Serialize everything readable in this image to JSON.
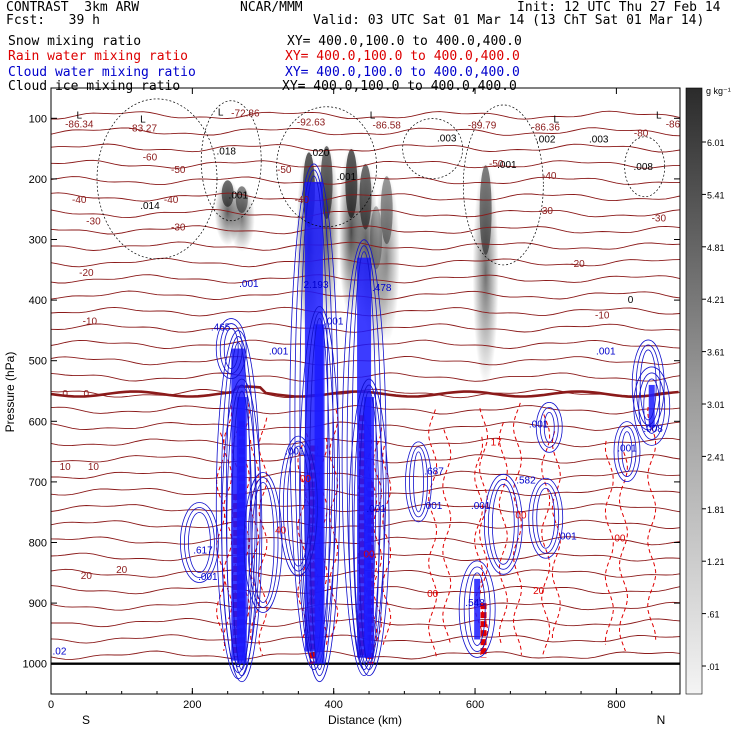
{
  "header": {
    "left_line1": "CONTRAST  3km ARW",
    "left_line2": "Fcst:   39 h",
    "center_line1": "NCAR/MMM",
    "right_line1": "Init: 12 UTC Thu 27 Feb 14",
    "right_line2": "Valid: 03 UTC Sat 01 Mar 14 (13 ChT Sat 01 Mar 14)"
  },
  "fields": [
    {
      "label": "Snow mixing ratio",
      "xy": "XY= 400.0,100.0 to 400.0,400.0",
      "color": "#000000"
    },
    {
      "label": "Rain water mixing ratio",
      "xy": "XY= 400.0,100.0 to 400.0,400.0",
      "color": "#dd0000"
    },
    {
      "label": "Cloud water mixing ratio",
      "xy": "XY= 400.0,100.0 to 400.0,400.0",
      "color": "#0000cc"
    },
    {
      "label": "Cloud ice mixing ratio",
      "xy": "XY= 400.0,100.0 to 400.0,400.0",
      "color": "#000000"
    }
  ],
  "chart_data": {
    "type": "heatmap",
    "xlabel": "Distance (km)",
    "ylabel": "Pressure (hPa)",
    "xlim": [
      0,
      890
    ],
    "ylim": [
      1050,
      50
    ],
    "x_ticks": [
      0,
      200,
      400,
      600,
      800
    ],
    "y_ticks": [
      100,
      200,
      300,
      400,
      500,
      600,
      700,
      800,
      900,
      1000
    ],
    "x_end_labels": {
      "left": "S",
      "right": "N"
    },
    "colorbar": {
      "unit": "g kg⁻¹",
      "levels": [
        "6.01",
        "5.41",
        "4.81",
        "4.21",
        "3.61",
        "3.01",
        "2.41",
        "1.81",
        "1.21",
        ".61",
        ".01"
      ]
    },
    "temperature_contours": {
      "color": "#8b1a1a",
      "labels": [
        {
          "text": "-86.34",
          "x": 40,
          "p": 115
        },
        {
          "text": "-83.27",
          "x": 130,
          "p": 122
        },
        {
          "text": "-72.86",
          "x": 275,
          "p": 97
        },
        {
          "text": "-92.63",
          "x": 368,
          "p": 112
        },
        {
          "text": "-86.58",
          "x": 475,
          "p": 117
        },
        {
          "text": "-89.79",
          "x": 610,
          "p": 117
        },
        {
          "text": "-86.36",
          "x": 700,
          "p": 120
        },
        {
          "text": "-86",
          "x": 880,
          "p": 115
        },
        {
          "text": "-80",
          "x": 835,
          "p": 130
        },
        {
          "text": "-60",
          "x": 140,
          "p": 170
        },
        {
          "text": "-50",
          "x": 180,
          "p": 190
        },
        {
          "text": "-50",
          "x": 330,
          "p": 190
        },
        {
          "text": "-40",
          "x": 40,
          "p": 240
        },
        {
          "text": "-40",
          "x": 170,
          "p": 240
        },
        {
          "text": "-40",
          "x": 355,
          "p": 240
        },
        {
          "text": "-50",
          "x": 630,
          "p": 180
        },
        {
          "text": "-40",
          "x": 705,
          "p": 200
        },
        {
          "text": "-30",
          "x": 60,
          "p": 275
        },
        {
          "text": "-30",
          "x": 180,
          "p": 285
        },
        {
          "text": "-30",
          "x": 700,
          "p": 258
        },
        {
          "text": "-30",
          "x": 860,
          "p": 270
        },
        {
          "text": "-20",
          "x": 50,
          "p": 360
        },
        {
          "text": "-20",
          "x": 745,
          "p": 345
        },
        {
          "text": "-10",
          "x": 55,
          "p": 440
        },
        {
          "text": "-10",
          "x": 780,
          "p": 430
        },
        {
          "text": "0",
          "x": 20,
          "p": 560
        },
        {
          "text": "0",
          "x": 50,
          "p": 560
        },
        {
          "text": "10",
          "x": 20,
          "p": 680
        },
        {
          "text": "10",
          "x": 60,
          "p": 680
        },
        {
          "text": "20",
          "x": 50,
          "p": 860
        },
        {
          "text": "20",
          "x": 100,
          "p": 850
        }
      ]
    },
    "maxima_labels": [
      {
        "text": "L",
        "x": 40,
        "p": 100
      },
      {
        "text": "L",
        "x": 130,
        "p": 107
      },
      {
        "text": "L",
        "x": 240,
        "p": 95
      },
      {
        "text": "L",
        "x": 455,
        "p": 100
      },
      {
        "text": "L",
        "x": 715,
        "p": 107
      },
      {
        "text": "L",
        "x": 860,
        "p": 100
      },
      {
        "text": ".018",
        "x": 248,
        "p": 160
      },
      {
        "text": ".014",
        "x": 140,
        "p": 250
      },
      {
        "text": ".001",
        "x": 265,
        "p": 232
      },
      {
        "text": ".020",
        "x": 380,
        "p": 162
      },
      {
        "text": ".003",
        "x": 560,
        "p": 138
      },
      {
        "text": ".002",
        "x": 700,
        "p": 140
      },
      {
        "text": ".003",
        "x": 775,
        "p": 140
      },
      {
        "text": ".001",
        "x": 645,
        "p": 182
      },
      {
        "text": ".008",
        "x": 838,
        "p": 185
      },
      {
        "text": ".001",
        "x": 418,
        "p": 202
      },
      {
        "text": "0",
        "x": 820,
        "p": 405
      }
    ],
    "rain_labels": [
      {
        "text": "17",
        "x": 630,
        "p": 640
      },
      {
        "text": "00",
        "x": 665,
        "p": 760
      },
      {
        "text": "00",
        "x": 805,
        "p": 798
      },
      {
        "text": "00",
        "x": 540,
        "p": 890
      },
      {
        "text": "20",
        "x": 690,
        "p": 885
      },
      {
        "text": "00",
        "x": 360,
        "p": 700
      },
      {
        "text": "00",
        "x": 450,
        "p": 825
      },
      {
        "text": "40",
        "x": 325,
        "p": 785
      }
    ],
    "cloud_water_labels": [
      {
        "text": ".465",
        "x": 240,
        "p": 450
      },
      {
        "text": ".001",
        "x": 280,
        "p": 378
      },
      {
        "text": "2.193",
        "x": 375,
        "p": 380
      },
      {
        "text": ".478",
        "x": 468,
        "p": 385
      },
      {
        "text": ".001",
        "x": 400,
        "p": 440
      },
      {
        "text": ".001",
        "x": 322,
        "p": 490
      },
      {
        "text": ".001",
        "x": 785,
        "p": 490
      },
      {
        "text": ".001",
        "x": 690,
        "p": 610
      },
      {
        "text": ".001",
        "x": 815,
        "p": 650
      },
      {
        "text": ".008",
        "x": 852,
        "p": 618
      },
      {
        "text": ".001",
        "x": 345,
        "p": 655
      },
      {
        "text": ".687",
        "x": 542,
        "p": 688
      },
      {
        "text": ".001",
        "x": 540,
        "p": 745
      },
      {
        "text": ".001",
        "x": 608,
        "p": 745
      },
      {
        "text": ".582",
        "x": 672,
        "p": 703
      },
      {
        "text": ".001",
        "x": 730,
        "p": 795
      },
      {
        "text": ".617",
        "x": 215,
        "p": 818
      },
      {
        "text": ".001",
        "x": 222,
        "p": 862
      },
      {
        "text": ".548",
        "x": 600,
        "p": 905
      },
      {
        "text": ".02",
        "x": 12,
        "p": 985
      },
      {
        "text": ".001",
        "x": 460,
        "p": 750
      }
    ],
    "snow_columns": [
      {
        "x": 250,
        "p_top": 200,
        "p_bot": 310,
        "intensity": 0.85
      },
      {
        "x": 270,
        "p_top": 210,
        "p_bot": 320,
        "intensity": 0.7
      },
      {
        "x": 365,
        "p_top": 150,
        "p_bot": 460,
        "intensity": 0.95
      },
      {
        "x": 390,
        "p_top": 140,
        "p_bot": 440,
        "intensity": 0.85
      },
      {
        "x": 425,
        "p_top": 145,
        "p_bot": 430,
        "intensity": 0.95
      },
      {
        "x": 445,
        "p_top": 170,
        "p_bot": 440,
        "intensity": 0.85
      },
      {
        "x": 475,
        "p_top": 190,
        "p_bot": 470,
        "intensity": 0.6
      },
      {
        "x": 615,
        "p_top": 170,
        "p_bot": 540,
        "intensity": 0.75
      },
      {
        "x": 460,
        "p_top": 240,
        "p_bot": 500,
        "intensity": 0.45
      }
    ],
    "cloud_water_columns": [
      {
        "x": 265,
        "p_top": 480,
        "p_bot": 995,
        "w": 14
      },
      {
        "x": 270,
        "p_top": 560,
        "p_bot": 1000,
        "w": 10
      },
      {
        "x": 372,
        "p_top": 205,
        "p_bot": 980,
        "w": 18
      },
      {
        "x": 380,
        "p_top": 440,
        "p_bot": 1000,
        "w": 10
      },
      {
        "x": 443,
        "p_top": 330,
        "p_bot": 990,
        "w": 14
      },
      {
        "x": 450,
        "p_top": 560,
        "p_bot": 990,
        "w": 10
      },
      {
        "x": 603,
        "p_top": 860,
        "p_bot": 960,
        "w": 6
      },
      {
        "x": 850,
        "p_top": 540,
        "p_bot": 610,
        "w": 6
      }
    ],
    "zero_isotherm_p": 555
  }
}
